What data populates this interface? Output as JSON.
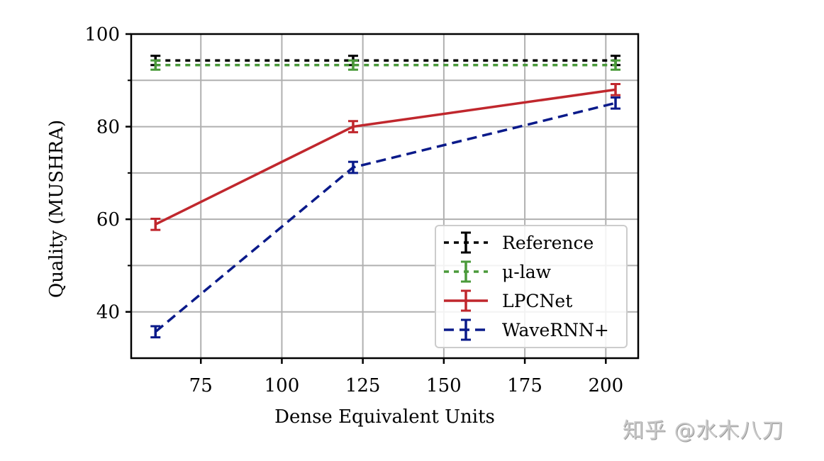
{
  "chart_data": {
    "type": "line",
    "title": "",
    "xlabel": "Dense Equivalent Units",
    "ylabel": "Quality (MUSHRA)",
    "xlim": [
      53.5,
      210
    ],
    "ylim": [
      30,
      100
    ],
    "xticks": [
      75,
      100,
      125,
      150,
      175,
      200
    ],
    "yticks": [
      40,
      60,
      80,
      100
    ],
    "yminor_ticks": [
      50,
      70,
      90
    ],
    "grid": true,
    "legend_position": "lower right",
    "x": [
      61,
      122,
      203
    ],
    "series": [
      {
        "name": "Reference",
        "values": [
          94.3,
          94.3,
          94.3
        ],
        "err": [
          1.0,
          1.0,
          1.0
        ],
        "color": "#000000",
        "style": "dotted"
      },
      {
        "name": "μ-law",
        "values": [
          93.3,
          93.3,
          93.3
        ],
        "err": [
          1.0,
          1.0,
          1.0
        ],
        "color": "#4a9a3a",
        "style": "dotted"
      },
      {
        "name": "LPCNet",
        "values": [
          58.9,
          80.0,
          88.0
        ],
        "err": [
          1.2,
          1.2,
          1.2
        ],
        "color": "#c0272d",
        "style": "solid"
      },
      {
        "name": "WaveRNN+",
        "values": [
          35.7,
          71.2,
          85.1
        ],
        "err": [
          1.2,
          1.2,
          1.2
        ],
        "color": "#0a1a8a",
        "style": "dashed"
      }
    ]
  },
  "watermark": "知乎 @水木八刀"
}
